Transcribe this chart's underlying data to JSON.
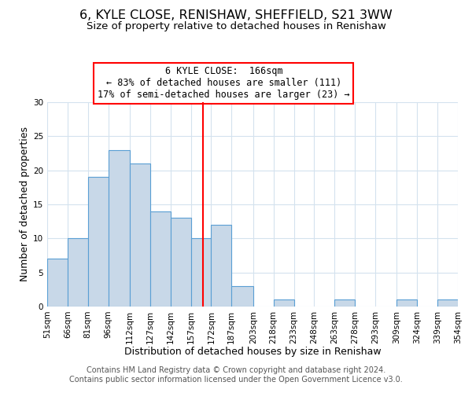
{
  "title": "6, KYLE CLOSE, RENISHAW, SHEFFIELD, S21 3WW",
  "subtitle": "Size of property relative to detached houses in Renishaw",
  "xlabel": "Distribution of detached houses by size in Renishaw",
  "ylabel": "Number of detached properties",
  "bar_edges": [
    51,
    66,
    81,
    96,
    112,
    127,
    142,
    157,
    172,
    187,
    203,
    218,
    233,
    248,
    263,
    278,
    293,
    309,
    324,
    339,
    354
  ],
  "bar_heights": [
    7,
    10,
    19,
    23,
    21,
    14,
    13,
    10,
    12,
    3,
    0,
    1,
    0,
    0,
    1,
    0,
    0,
    1,
    0,
    1
  ],
  "bar_color": "#c8d8e8",
  "bar_edge_color": "#5a9fd4",
  "vline_x": 166,
  "vline_color": "red",
  "annotation_line1": "6 KYLE CLOSE:  166sqm",
  "annotation_line2": "← 83% of detached houses are smaller (111)",
  "annotation_line3": "17% of semi-detached houses are larger (23) →",
  "ylim": [
    0,
    30
  ],
  "yticks": [
    0,
    5,
    10,
    15,
    20,
    25,
    30
  ],
  "xtick_labels": [
    "51sqm",
    "66sqm",
    "81sqm",
    "96sqm",
    "112sqm",
    "127sqm",
    "142sqm",
    "157sqm",
    "172sqm",
    "187sqm",
    "203sqm",
    "218sqm",
    "233sqm",
    "248sqm",
    "263sqm",
    "278sqm",
    "293sqm",
    "309sqm",
    "324sqm",
    "339sqm",
    "354sqm"
  ],
  "footer_line1": "Contains HM Land Registry data © Crown copyright and database right 2024.",
  "footer_line2": "Contains public sector information licensed under the Open Government Licence v3.0.",
  "background_color": "#ffffff",
  "grid_color": "#d4e2ee",
  "title_fontsize": 11.5,
  "subtitle_fontsize": 9.5,
  "axis_label_fontsize": 9,
  "tick_fontsize": 7.5,
  "footer_fontsize": 7,
  "annotation_fontsize": 8.5
}
